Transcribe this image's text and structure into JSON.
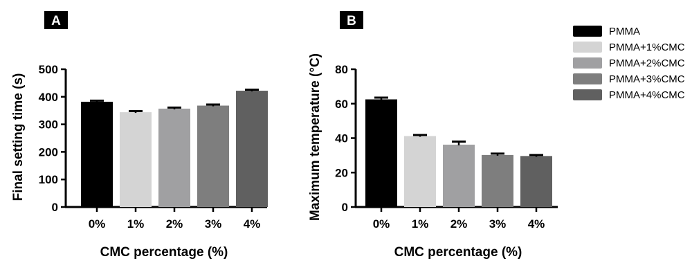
{
  "chart_data": [
    {
      "type": "bar",
      "panel_label": "A",
      "categories": [
        "0%",
        "1%",
        "2%",
        "3%",
        "4%"
      ],
      "values": [
        382,
        344,
        357,
        368,
        422
      ],
      "errors": [
        4,
        4,
        4,
        4,
        4
      ],
      "xlabel": "CMC percentage (%)",
      "ylabel": "Final setting time (s)",
      "ylim": [
        0,
        500
      ],
      "yticks": [
        0,
        100,
        200,
        300,
        400,
        500
      ],
      "grid": false,
      "colors": [
        "#000000",
        "#d4d4d4",
        "#a0a0a2",
        "#7e7e7e",
        "#606060"
      ]
    },
    {
      "type": "bar",
      "panel_label": "B",
      "categories": [
        "0%",
        "1%",
        "2%",
        "3%",
        "4%"
      ],
      "values": [
        62.5,
        41.2,
        36.2,
        30.2,
        29.6
      ],
      "errors": [
        1.0,
        0.6,
        1.8,
        0.8,
        0.6
      ],
      "xlabel": "CMC percentage (%)",
      "ylabel": "Maximum temperature (°C)",
      "ylim": [
        0,
        80
      ],
      "yticks": [
        0,
        20,
        40,
        60,
        80
      ],
      "grid": false,
      "colors": [
        "#000000",
        "#d4d4d4",
        "#a0a0a2",
        "#7e7e7e",
        "#606060"
      ]
    }
  ],
  "legend": {
    "placement": "right",
    "entries": [
      {
        "label": "PMMA",
        "color": "#000000"
      },
      {
        "label": "PMMA+1%CMC",
        "color": "#d4d4d4"
      },
      {
        "label": "PMMA+2%CMC",
        "color": "#a0a0a2"
      },
      {
        "label": "PMMA+3%CMC",
        "color": "#7e7e7e"
      },
      {
        "label": "PMMA+4%CMC",
        "color": "#606060"
      }
    ]
  }
}
